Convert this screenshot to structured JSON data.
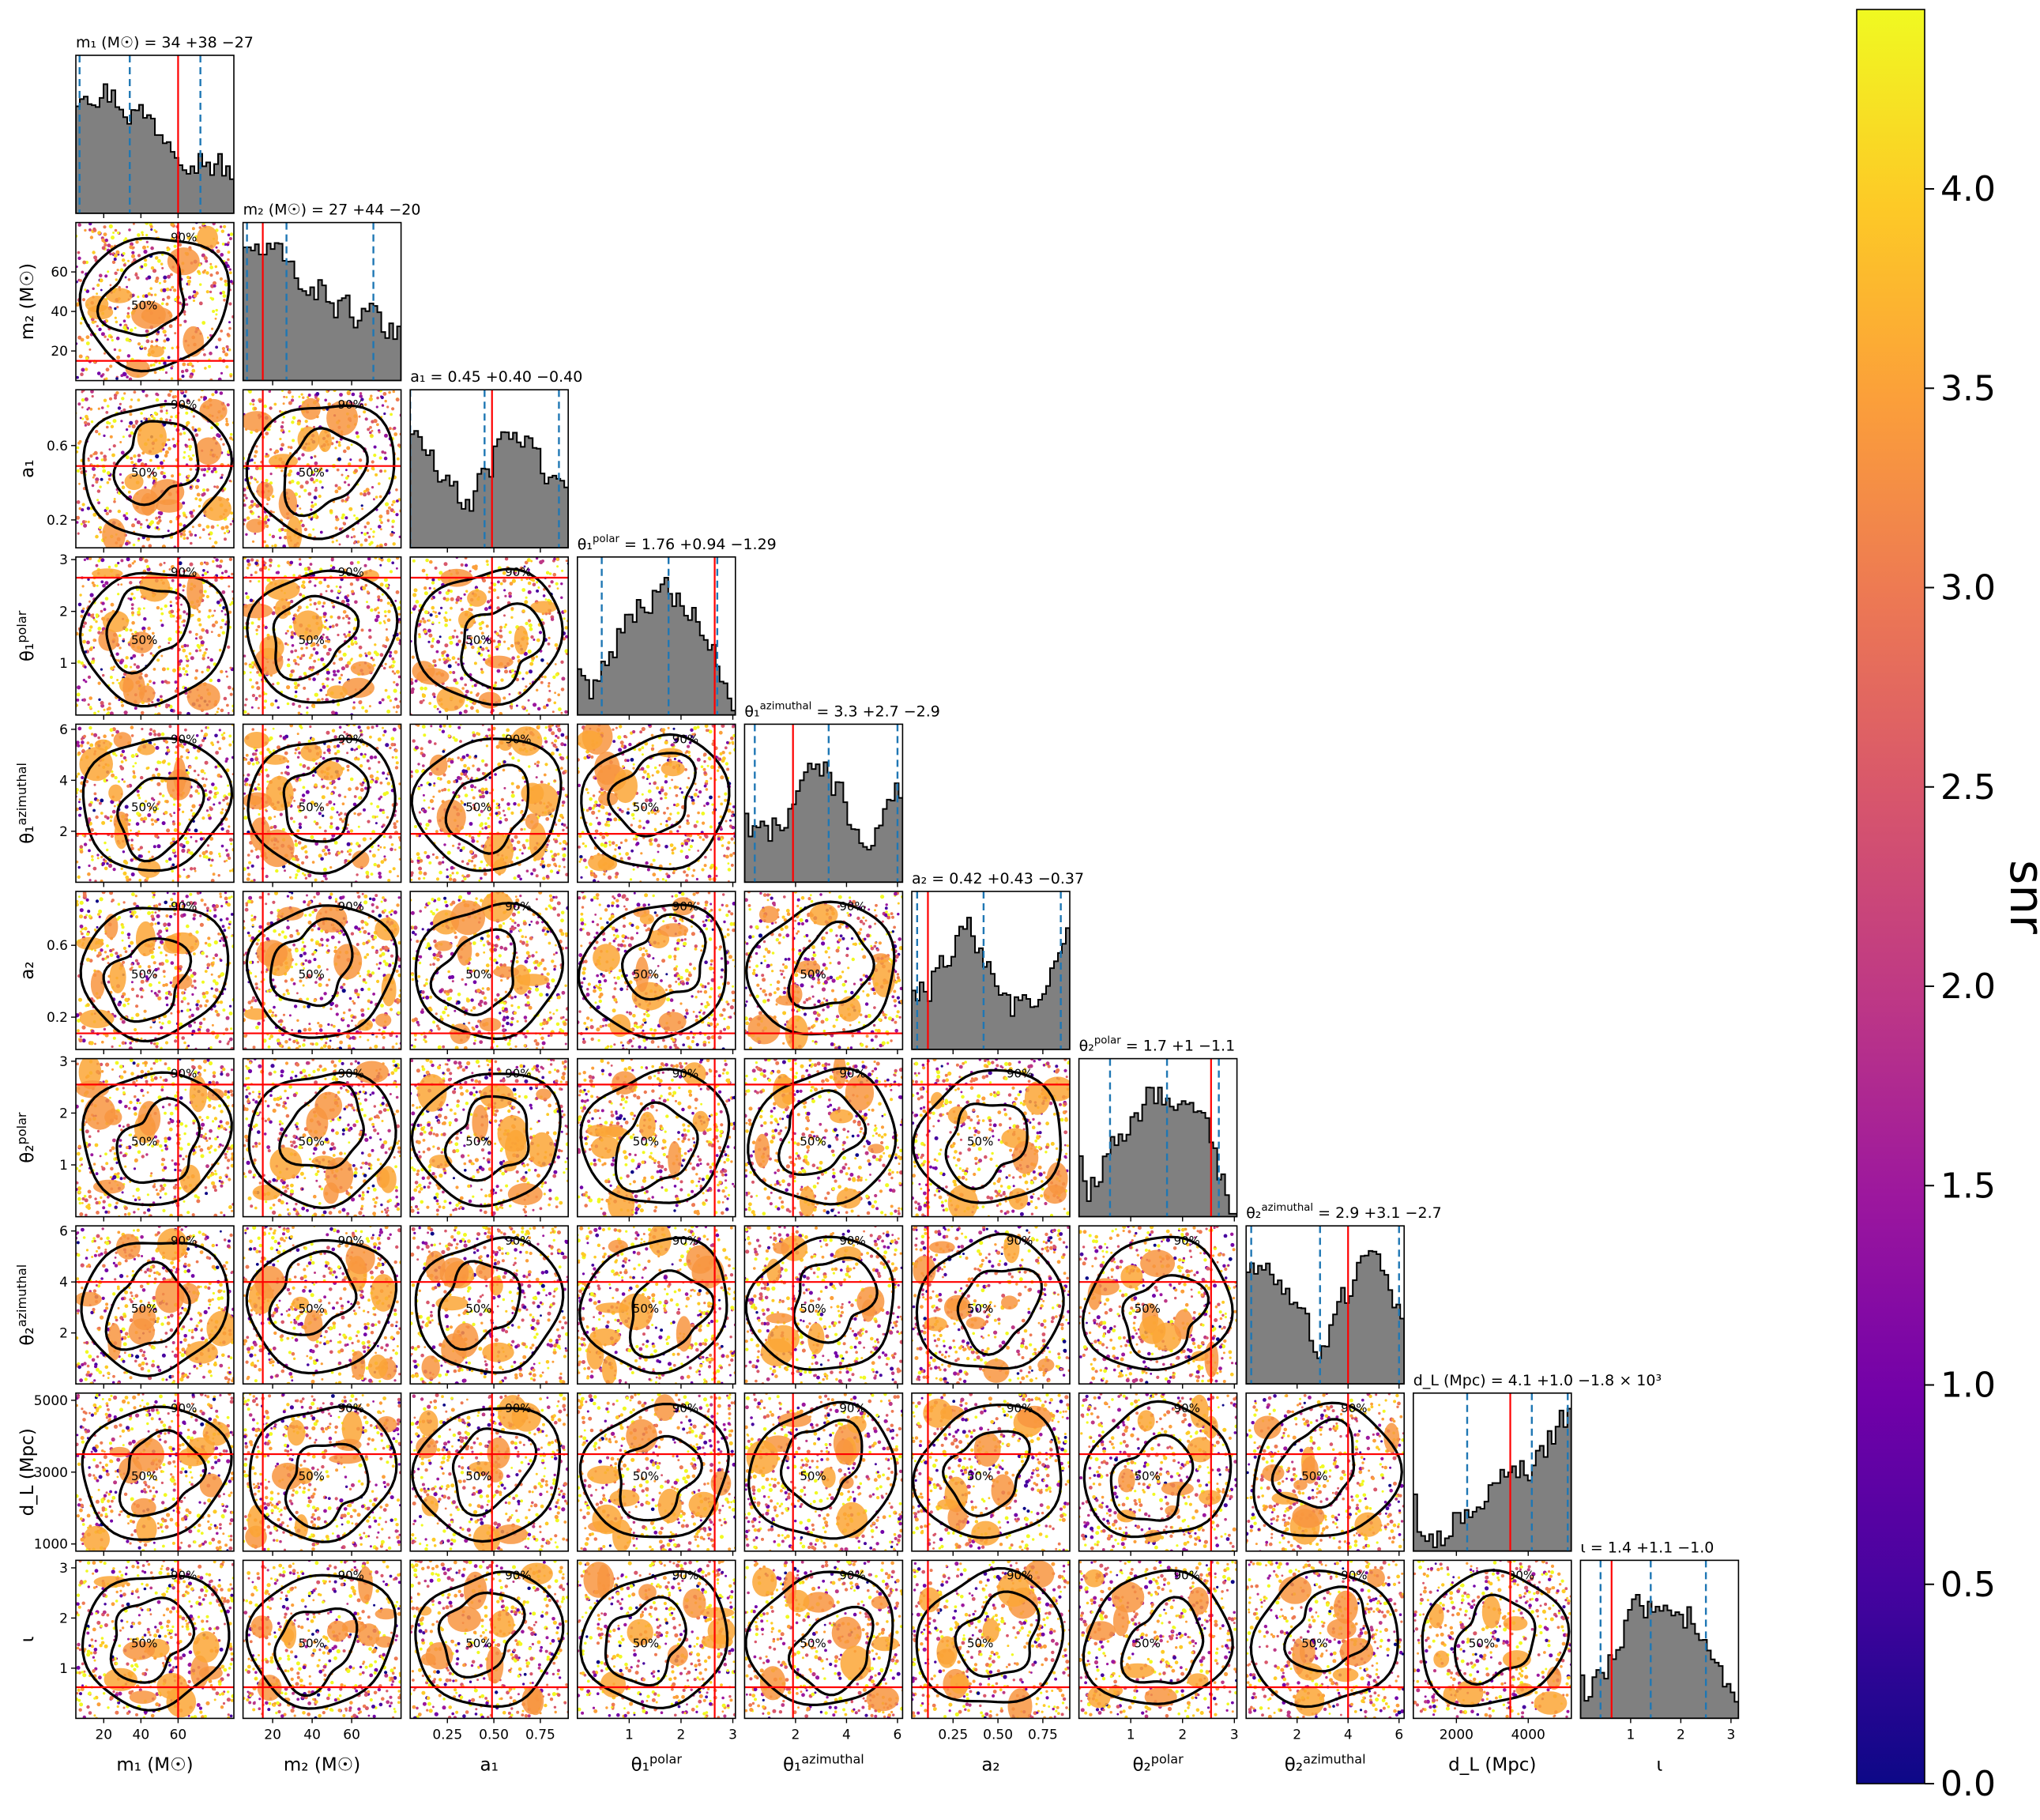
{
  "chart_data": {
    "type": "scatter",
    "subtype": "corner plot (pairwise scatter with posterior contours and 1D histograms)",
    "parameters": [
      {
        "key": "m1",
        "label": "m₁ (M☉)",
        "title": "m₁ (M☉) = 34 +38 −27",
        "range": [
          5,
          90
        ],
        "ticks": [
          20,
          40,
          60
        ],
        "tick_labels": [
          "20",
          "40",
          "60"
        ],
        "median": 34,
        "lower": 7,
        "upper": 72,
        "truth": 60
      },
      {
        "key": "m2",
        "label": "m₂ (M☉)",
        "title": "m₂ (M☉) = 27 +44 −20",
        "range": [
          5,
          85
        ],
        "ticks": [
          20,
          40,
          60
        ],
        "tick_labels": [
          "20",
          "40",
          "60"
        ],
        "median": 27,
        "lower": 7,
        "upper": 71,
        "truth": 15
      },
      {
        "key": "a1",
        "label": "a₁",
        "title": "a₁ = 0.45 +0.40 −0.40",
        "range": [
          0.05,
          0.9
        ],
        "ticks": [
          0.25,
          0.5,
          0.75
        ],
        "tick_labels": [
          "0.25",
          "0.50",
          "0.75"
        ],
        "y_ticks": [
          0.2,
          0.6
        ],
        "y_tick_labels": [
          "0.2",
          "0.6"
        ],
        "median": 0.45,
        "lower": 0.05,
        "upper": 0.85,
        "truth": 0.49
      },
      {
        "key": "theta1_polar",
        "label": "θ₁ polar",
        "title": "θ₁ polar = 1.76 +0.94 −1.29",
        "range": [
          0,
          3.05
        ],
        "ticks": [
          1,
          2,
          3
        ],
        "tick_labels": [
          "1",
          "2",
          "3"
        ],
        "median": 1.76,
        "lower": 0.47,
        "upper": 2.7,
        "truth": 2.65
      },
      {
        "key": "theta1_azimuthal",
        "label": "θ₁ azimuthal",
        "title": "θ₁ azimuthal = 3.3 +2.7 −2.9",
        "range": [
          0,
          6.2
        ],
        "ticks": [
          2,
          4,
          6
        ],
        "tick_labels": [
          "2",
          "4",
          "6"
        ],
        "median": 3.3,
        "lower": 0.4,
        "upper": 6.0,
        "truth": 1.9
      },
      {
        "key": "a2",
        "label": "a₂",
        "title": "a₂ = 0.42 +0.43 −0.37",
        "range": [
          0.02,
          0.9
        ],
        "ticks": [
          0.25,
          0.5,
          0.75
        ],
        "tick_labels": [
          "0.25",
          "0.50",
          "0.75"
        ],
        "y_ticks": [
          0.2,
          0.6
        ],
        "y_tick_labels": [
          "0.2",
          "0.6"
        ],
        "median": 0.42,
        "lower": 0.05,
        "upper": 0.85,
        "truth": 0.11
      },
      {
        "key": "theta2_polar",
        "label": "θ₂ polar",
        "title": "θ₂ polar = 1.7 +1 −1.1",
        "range": [
          0,
          3.05
        ],
        "ticks": [
          1,
          2,
          3
        ],
        "tick_labels": [
          "1",
          "2",
          "3"
        ],
        "median": 1.7,
        "lower": 0.6,
        "upper": 2.7,
        "truth": 2.55
      },
      {
        "key": "theta2_azimuthal",
        "label": "θ₂ azimuthal",
        "title": "θ₂ azimuthal = 2.9 +3.1 −2.7",
        "range": [
          0,
          6.2
        ],
        "ticks": [
          2,
          4,
          6
        ],
        "tick_labels": [
          "2",
          "4",
          "6"
        ],
        "median": 2.9,
        "lower": 0.2,
        "upper": 6.0,
        "truth": 4.0
      },
      {
        "key": "dL",
        "label": "d_L (Mpc)",
        "title": "d_L (Mpc) = 4.1 +1.0 −1.8 × 10³",
        "range": [
          800,
          5200
        ],
        "ticks": [
          2000,
          4000
        ],
        "tick_labels": [
          "2000",
          "4000"
        ],
        "y_ticks": [
          1000,
          3000,
          5000
        ],
        "y_tick_labels": [
          "1000",
          "3000",
          "5000"
        ],
        "median": 4100,
        "lower": 2300,
        "upper": 5100,
        "truth": 3500
      },
      {
        "key": "iota",
        "label": "ι",
        "title": "ι = 1.4 +1.1 −1.0",
        "range": [
          0,
          3.15
        ],
        "ticks": [
          1,
          2,
          3
        ],
        "tick_labels": [
          "1",
          "2",
          "3"
        ],
        "median": 1.4,
        "lower": 0.4,
        "upper": 2.5,
        "truth": 0.62
      }
    ],
    "contour_levels": [
      "50%",
      "90%"
    ],
    "colorbar": {
      "label": "snr",
      "range": [
        0.0,
        4.45
      ],
      "ticks": [
        0.0,
        0.5,
        1.0,
        1.5,
        2.0,
        2.5,
        3.0,
        3.5,
        4.0
      ],
      "tick_labels": [
        "0.0",
        "0.5",
        "1.0",
        "1.5",
        "2.0",
        "2.5",
        "3.0",
        "3.5",
        "4.0"
      ],
      "colormap": "plasma",
      "colors": [
        "#0d0887",
        "#46039f",
        "#7201a8",
        "#9c179e",
        "#bd3786",
        "#d8576b",
        "#ed7953",
        "#fb9f3a",
        "#fdca26",
        "#f0f921"
      ]
    },
    "hist_color": "#808080",
    "quantile_line_color": "#1f77b4",
    "truth_line_color": "#ff0000",
    "grid": false
  }
}
